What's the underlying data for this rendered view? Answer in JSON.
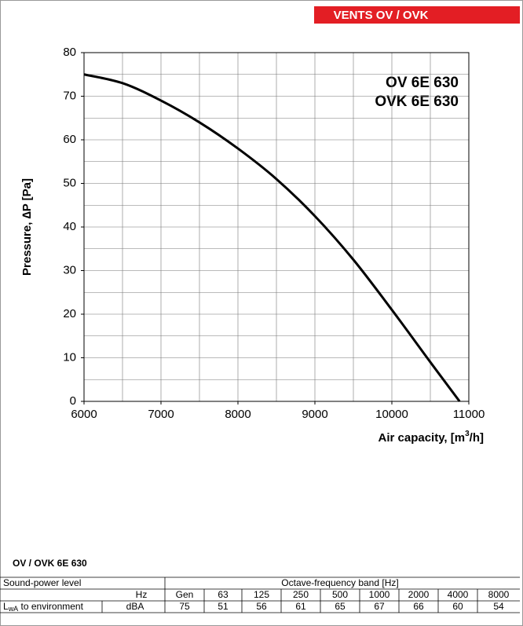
{
  "header": {
    "title": "VENTS OV / OVK"
  },
  "chart_data": {
    "type": "line",
    "annotations": [
      "OV 6E 630",
      "OVK 6E 630"
    ],
    "x_label": {
      "text": "Air capacity, [m",
      "superscript": "3",
      "unit": "/h]"
    },
    "y_label": "Pressure, ∆P [Pa]",
    "x": [
      6000,
      6500,
      7000,
      7500,
      8000,
      8500,
      9000,
      9500,
      10000,
      10500,
      10880
    ],
    "series": [
      {
        "name": "OV 6E 630",
        "color": "#000000",
        "values": [
          75,
          73,
          69,
          64,
          58,
          51,
          42.5,
          32.5,
          21,
          9,
          0
        ]
      }
    ],
    "xlim": [
      6000,
      11000
    ],
    "xticks": [
      6000,
      7000,
      8000,
      9000,
      10000,
      11000
    ],
    "ylim": [
      0,
      80
    ],
    "yticks": [
      0,
      10,
      20,
      30,
      40,
      50,
      60,
      70,
      80
    ],
    "xgrid": [
      6000,
      6500,
      7000,
      7500,
      8000,
      8500,
      9000,
      9500,
      10000,
      10500,
      11000
    ],
    "ygrid": [
      0,
      5,
      10,
      15,
      20,
      25,
      30,
      35,
      40,
      45,
      50,
      55,
      60,
      65,
      70,
      75,
      80
    ],
    "grid": true
  },
  "table": {
    "title": "OV / OVK 6E 630",
    "header": [
      "Sound-power level",
      "Octave-frequency band [Hz]"
    ],
    "unit_row": {
      "unit": "Hz",
      "cells": [
        "Gen",
        "63",
        "125",
        "250",
        "500",
        "1000",
        "2000",
        "4000",
        "8000"
      ]
    },
    "data_row": {
      "label": {
        "symbol": "L",
        "subscript": "wA",
        "text": " to environment"
      },
      "unit": "dBA",
      "cells": [
        "75",
        "51",
        "56",
        "61",
        "65",
        "67",
        "66",
        "60",
        "54"
      ]
    }
  }
}
